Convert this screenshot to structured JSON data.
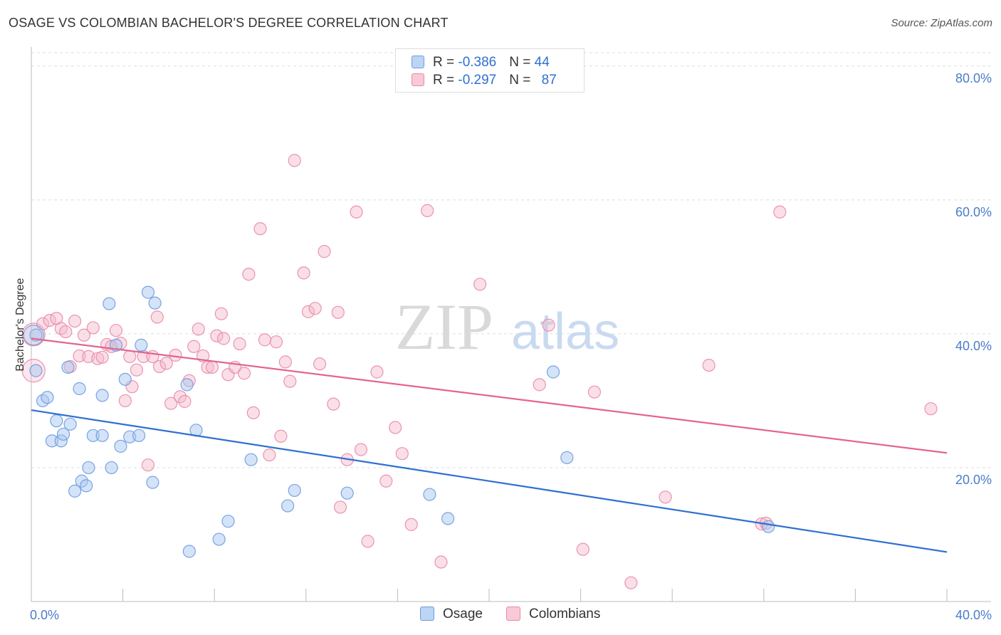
{
  "title": "OSAGE VS COLOMBIAN BACHELOR'S DEGREE CORRELATION CHART",
  "source_label": "Source: ZipAtlas.com",
  "watermark": {
    "zip": "ZIP",
    "atlas": "atlas"
  },
  "colors": {
    "osage_fill": "#a9c8f0",
    "osage_stroke": "#6b9be0",
    "osage_line": "#2f6fd1",
    "col_fill": "#f5b8ca",
    "col_stroke": "#e88aa8",
    "col_line": "#e0668f",
    "tick_text": "#4a7cc9",
    "grid": "#dddddd"
  },
  "legend_top": {
    "rows": [
      {
        "series": "Osage",
        "r_label": "R = ",
        "r_value": "-0.386",
        "n_label": "N = ",
        "n_value": "44"
      },
      {
        "series": "Colombians",
        "r_label": "R = ",
        "r_value": "-0.297",
        "n_label": "N = ",
        "n_value": "87"
      }
    ]
  },
  "legend_bottom": {
    "items": [
      "Osage",
      "Colombians"
    ]
  },
  "chart_data": {
    "type": "scatter",
    "title": "OSAGE VS COLOMBIAN BACHELOR'S DEGREE CORRELATION CHART",
    "xlabel": "",
    "ylabel": "Bachelor's Degree",
    "xlim": [
      0,
      40
    ],
    "ylim": [
      0,
      82
    ],
    "x_tick_labels": [
      "0.0%",
      "40.0%"
    ],
    "y_ticks": [
      20,
      40,
      60,
      80
    ],
    "y_tick_labels": [
      "20.0%",
      "40.0%",
      "60.0%",
      "80.0%"
    ],
    "grid": true,
    "legend": "bottom-center",
    "series": [
      {
        "name": "Osage",
        "r": -0.386,
        "n": 44,
        "trend": {
          "x": [
            0,
            40
          ],
          "y": [
            28.6,
            7.4
          ]
        },
        "points": [
          [
            0.2,
            39.8
          ],
          [
            0.2,
            34.5
          ],
          [
            0.5,
            30
          ],
          [
            0.7,
            30.5
          ],
          [
            0.9,
            24
          ],
          [
            1.1,
            27
          ],
          [
            1.3,
            24
          ],
          [
            1.4,
            25
          ],
          [
            1.6,
            35
          ],
          [
            1.7,
            26.5
          ],
          [
            1.9,
            16.5
          ],
          [
            2.1,
            31.8
          ],
          [
            2.2,
            18
          ],
          [
            2.4,
            17.3
          ],
          [
            2.5,
            20
          ],
          [
            2.7,
            24.8
          ],
          [
            3.1,
            24.8
          ],
          [
            3.1,
            30.8
          ],
          [
            3.4,
            44.5
          ],
          [
            3.5,
            20
          ],
          [
            3.7,
            38.3
          ],
          [
            3.9,
            23.2
          ],
          [
            4.1,
            33.2
          ],
          [
            4.3,
            24.6
          ],
          [
            4.7,
            24.8
          ],
          [
            4.8,
            38.3
          ],
          [
            5.1,
            46.2
          ],
          [
            5.3,
            17.8
          ],
          [
            5.4,
            44.6
          ],
          [
            6.8,
            32.4
          ],
          [
            6.9,
            7.5
          ],
          [
            7.2,
            25.6
          ],
          [
            8.2,
            9.3
          ],
          [
            8.6,
            12
          ],
          [
            9.6,
            21.2
          ],
          [
            11.2,
            14.3
          ],
          [
            11.5,
            16.6
          ],
          [
            13.8,
            16.2
          ],
          [
            17.4,
            16
          ],
          [
            18.2,
            12.4
          ],
          [
            22.8,
            34.3
          ],
          [
            23.4,
            21.5
          ],
          [
            32.2,
            11.2
          ],
          [
            0.1,
            39.8
          ]
        ]
      },
      {
        "name": "Colombians",
        "r": -0.297,
        "n": 87,
        "trend": {
          "x": [
            0,
            40
          ],
          "y": [
            39.3,
            22.2
          ]
        },
        "points": [
          [
            0.1,
            39.9
          ],
          [
            0.1,
            34.5
          ],
          [
            0.5,
            41.5
          ],
          [
            0.8,
            42
          ],
          [
            1.1,
            42.3
          ],
          [
            1.3,
            40.8
          ],
          [
            1.5,
            40.3
          ],
          [
            1.7,
            35.1
          ],
          [
            1.9,
            41.9
          ],
          [
            2.1,
            36.7
          ],
          [
            2.3,
            39.8
          ],
          [
            2.5,
            36.6
          ],
          [
            2.7,
            40.9
          ],
          [
            2.9,
            36.3
          ],
          [
            3.1,
            36.5
          ],
          [
            3.3,
            38.4
          ],
          [
            3.5,
            38.1
          ],
          [
            3.7,
            40.5
          ],
          [
            3.9,
            38.6
          ],
          [
            4.1,
            30
          ],
          [
            4.3,
            36.6
          ],
          [
            4.4,
            32.1
          ],
          [
            4.6,
            34.6
          ],
          [
            4.9,
            36.6
          ],
          [
            5.1,
            20.4
          ],
          [
            5.3,
            36.6
          ],
          [
            5.5,
            42.5
          ],
          [
            5.6,
            35.1
          ],
          [
            5.9,
            35.6
          ],
          [
            6.1,
            29.6
          ],
          [
            6.3,
            36.8
          ],
          [
            6.5,
            30.6
          ],
          [
            6.7,
            29.9
          ],
          [
            6.9,
            33
          ],
          [
            7.1,
            38.1
          ],
          [
            7.3,
            40.7
          ],
          [
            7.5,
            36.7
          ],
          [
            7.7,
            35
          ],
          [
            7.9,
            35
          ],
          [
            8.1,
            39.7
          ],
          [
            8.3,
            43
          ],
          [
            8.4,
            39.3
          ],
          [
            8.6,
            33.9
          ],
          [
            8.9,
            35
          ],
          [
            9.1,
            38.5
          ],
          [
            9.3,
            34.1
          ],
          [
            9.5,
            48.9
          ],
          [
            9.7,
            28.2
          ],
          [
            10,
            55.7
          ],
          [
            10.2,
            39.1
          ],
          [
            10.4,
            21.9
          ],
          [
            10.7,
            38.8
          ],
          [
            10.9,
            24.7
          ],
          [
            11.1,
            35.8
          ],
          [
            11.3,
            32.9
          ],
          [
            11.5,
            65.9
          ],
          [
            11.9,
            49.1
          ],
          [
            12.1,
            43.3
          ],
          [
            12.4,
            43.8
          ],
          [
            12.6,
            35.5
          ],
          [
            12.8,
            52.3
          ],
          [
            13.2,
            29.5
          ],
          [
            13.4,
            43.2
          ],
          [
            13.5,
            14.1
          ],
          [
            13.8,
            21.2
          ],
          [
            14.2,
            58.2
          ],
          [
            14.4,
            22.7
          ],
          [
            14.7,
            9
          ],
          [
            15.1,
            34.3
          ],
          [
            15.5,
            18
          ],
          [
            15.9,
            26
          ],
          [
            16.2,
            22.1
          ],
          [
            16.6,
            11.5
          ],
          [
            17.3,
            58.4
          ],
          [
            17.9,
            5.9
          ],
          [
            19.6,
            47.4
          ],
          [
            22.2,
            32.4
          ],
          [
            22.6,
            41.3
          ],
          [
            24.1,
            7.8
          ],
          [
            24.6,
            31.3
          ],
          [
            26.2,
            2.8
          ],
          [
            27.7,
            15.6
          ],
          [
            29.6,
            35.3
          ],
          [
            31.9,
            11.6
          ],
          [
            32.1,
            11.7
          ],
          [
            32.7,
            58.2
          ],
          [
            39.3,
            28.8
          ]
        ]
      }
    ]
  }
}
